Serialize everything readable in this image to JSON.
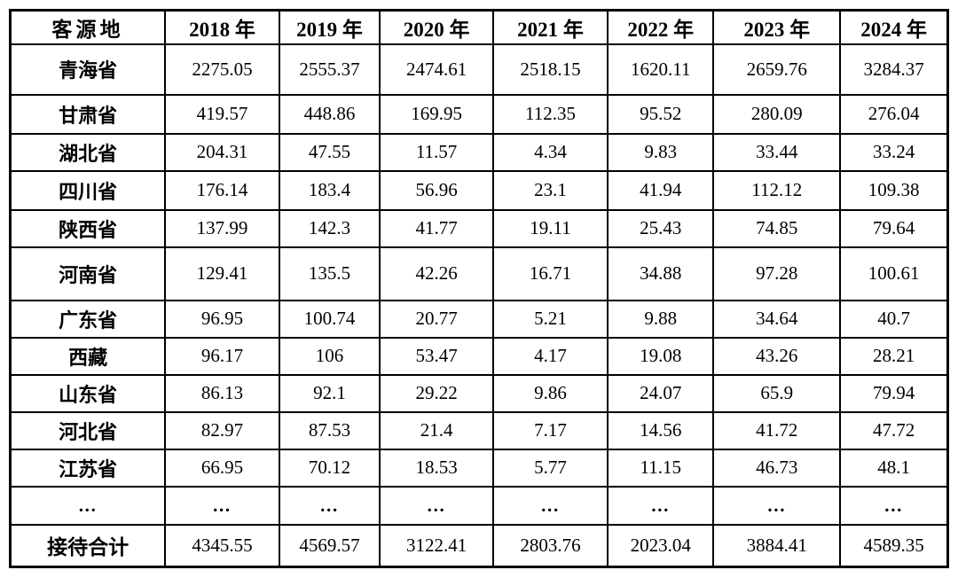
{
  "page": {
    "background_color": "#ffffff",
    "border_color": "#000000",
    "text_color": "#000000"
  },
  "table": {
    "columns": [
      "客源地",
      "2018 年",
      "2019 年",
      "2020 年",
      "2021 年",
      "2022 年",
      "2023 年",
      "2024 年"
    ],
    "rows": [
      {
        "label": "青海省",
        "values": [
          "2275.05",
          "2555.37",
          "2474.61",
          "2518.15",
          "1620.11",
          "2659.76",
          "3284.37"
        ]
      },
      {
        "label": "甘肃省",
        "values": [
          "419.57",
          "448.86",
          "169.95",
          "112.35",
          "95.52",
          "280.09",
          "276.04"
        ]
      },
      {
        "label": "湖北省",
        "values": [
          "204.31",
          "47.55",
          "11.57",
          "4.34",
          "9.83",
          "33.44",
          "33.24"
        ]
      },
      {
        "label": "四川省",
        "values": [
          "176.14",
          "183.4",
          "56.96",
          "23.1",
          "41.94",
          "112.12",
          "109.38"
        ]
      },
      {
        "label": "陕西省",
        "values": [
          "137.99",
          "142.3",
          "41.77",
          "19.11",
          "25.43",
          "74.85",
          "79.64"
        ]
      },
      {
        "label": "河南省",
        "values": [
          "129.41",
          "135.5",
          "42.26",
          "16.71",
          "34.88",
          "97.28",
          "100.61"
        ]
      },
      {
        "label": "广东省",
        "values": [
          "96.95",
          "100.74",
          "20.77",
          "5.21",
          "9.88",
          "34.64",
          "40.7"
        ]
      },
      {
        "label": "西藏",
        "values": [
          "96.17",
          "106",
          "53.47",
          "4.17",
          "19.08",
          "43.26",
          "28.21"
        ]
      },
      {
        "label": "山东省",
        "values": [
          "86.13",
          "92.1",
          "29.22",
          "9.86",
          "24.07",
          "65.9",
          "79.94"
        ]
      },
      {
        "label": "河北省",
        "values": [
          "82.97",
          "87.53",
          "21.4",
          "7.17",
          "14.56",
          "41.72",
          "47.72"
        ]
      },
      {
        "label": "江苏省",
        "values": [
          "66.95",
          "70.12",
          "18.53",
          "5.77",
          "11.15",
          "46.73",
          "48.1"
        ]
      },
      {
        "label": "...",
        "values": [
          "...",
          "...",
          "...",
          "...",
          "...",
          "...",
          "..."
        ]
      },
      {
        "label": "接待合计",
        "values": [
          "4345.55",
          "4569.57",
          "3122.41",
          "2803.76",
          "2023.04",
          "3884.41",
          "4589.35"
        ]
      }
    ]
  }
}
